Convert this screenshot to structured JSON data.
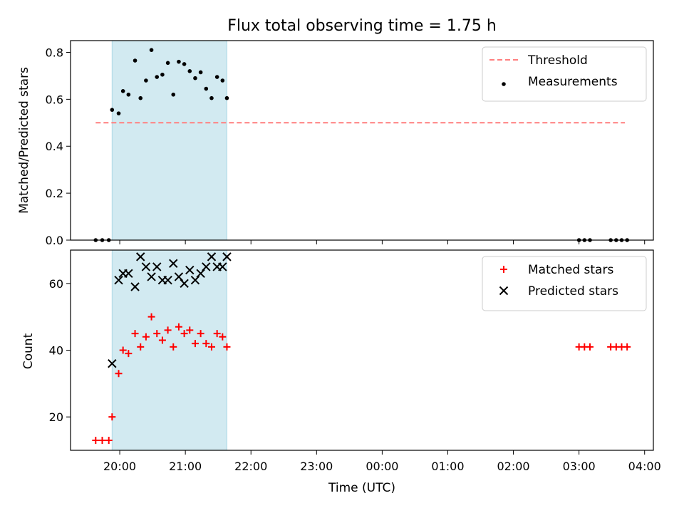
{
  "title": "Flux total observing time = 1.75 h",
  "colors": {
    "shade": "#add8e6",
    "threshold": "#ff7f7f",
    "measurements": "#000000",
    "matched": "#ff0000",
    "predicted": "#000000"
  },
  "chart_data": [
    {
      "type": "scatter",
      "panel": "top",
      "ylabel": "Matched/Predicted stars",
      "xlim": [
        "19:15",
        "04:08"
      ],
      "ylim": [
        0,
        0.85
      ],
      "yticks": [
        0.0,
        0.2,
        0.4,
        0.6,
        0.8
      ],
      "ytick_labels": [
        "0.0",
        "0.2",
        "0.4",
        "0.6",
        "0.8"
      ],
      "shaded_span": [
        "19:53",
        "21:38"
      ],
      "legend_position": "upper right",
      "threshold": {
        "name": "Threshold",
        "y": 0.5,
        "x": [
          "19:38",
          "03:42"
        ],
        "style": "dashed"
      },
      "series": [
        {
          "name": "Measurements",
          "marker": "dot",
          "points": [
            [
              "19:38",
              0.0
            ],
            [
              "19:44",
              0.0
            ],
            [
              "19:50",
              0.0
            ],
            [
              "19:53",
              0.555
            ],
            [
              "19:59",
              0.54
            ],
            [
              "20:03",
              0.635
            ],
            [
              "20:08",
              0.62
            ],
            [
              "20:14",
              0.765
            ],
            [
              "20:19",
              0.605
            ],
            [
              "20:24",
              0.68
            ],
            [
              "20:29",
              0.81
            ],
            [
              "20:34",
              0.695
            ],
            [
              "20:39",
              0.705
            ],
            [
              "20:44",
              0.755
            ],
            [
              "20:49",
              0.62
            ],
            [
              "20:54",
              0.76
            ],
            [
              "20:59",
              0.75
            ],
            [
              "21:04",
              0.72
            ],
            [
              "21:09",
              0.69
            ],
            [
              "21:14",
              0.715
            ],
            [
              "21:19",
              0.645
            ],
            [
              "21:24",
              0.605
            ],
            [
              "21:29",
              0.695
            ],
            [
              "21:34",
              0.68
            ],
            [
              "21:38",
              0.605
            ],
            [
              "03:00",
              0.0
            ],
            [
              "03:05",
              0.0
            ],
            [
              "03:10",
              0.0
            ],
            [
              "03:29",
              0.0
            ],
            [
              "03:34",
              0.0
            ],
            [
              "03:39",
              0.0
            ],
            [
              "03:44",
              0.0
            ]
          ]
        }
      ]
    },
    {
      "type": "scatter",
      "panel": "bottom",
      "xlabel": "Time (UTC)",
      "ylabel": "Count",
      "xlim": [
        "19:15",
        "04:08"
      ],
      "xticks": [
        "20:00",
        "21:00",
        "22:00",
        "23:00",
        "00:00",
        "01:00",
        "02:00",
        "03:00",
        "04:00"
      ],
      "ylim": [
        10,
        70
      ],
      "yticks": [
        20,
        40,
        60
      ],
      "ytick_labels": [
        "20",
        "40",
        "60"
      ],
      "shaded_span": [
        "19:53",
        "21:38"
      ],
      "legend_position": "upper right",
      "series": [
        {
          "name": "Matched stars",
          "marker": "plus",
          "points": [
            [
              "19:38",
              13
            ],
            [
              "19:44",
              13
            ],
            [
              "19:50",
              13
            ],
            [
              "19:53",
              20
            ],
            [
              "19:59",
              33
            ],
            [
              "20:03",
              40
            ],
            [
              "20:08",
              39
            ],
            [
              "20:14",
              45
            ],
            [
              "20:19",
              41
            ],
            [
              "20:24",
              44
            ],
            [
              "20:29",
              50
            ],
            [
              "20:34",
              45
            ],
            [
              "20:39",
              43
            ],
            [
              "20:44",
              46
            ],
            [
              "20:49",
              41
            ],
            [
              "20:54",
              47
            ],
            [
              "20:59",
              45
            ],
            [
              "21:04",
              46
            ],
            [
              "21:09",
              42
            ],
            [
              "21:14",
              45
            ],
            [
              "21:19",
              42
            ],
            [
              "21:24",
              41
            ],
            [
              "21:29",
              45
            ],
            [
              "21:34",
              44
            ],
            [
              "21:38",
              41
            ],
            [
              "03:00",
              41
            ],
            [
              "03:05",
              41
            ],
            [
              "03:10",
              41
            ],
            [
              "03:29",
              41
            ],
            [
              "03:34",
              41
            ],
            [
              "03:39",
              41
            ],
            [
              "03:44",
              41
            ]
          ]
        },
        {
          "name": "Predicted stars",
          "marker": "x",
          "points": [
            [
              "19:53",
              36
            ],
            [
              "19:59",
              61
            ],
            [
              "20:03",
              63
            ],
            [
              "20:08",
              63
            ],
            [
              "20:14",
              59
            ],
            [
              "20:19",
              68
            ],
            [
              "20:24",
              65
            ],
            [
              "20:29",
              62
            ],
            [
              "20:34",
              65
            ],
            [
              "20:39",
              61
            ],
            [
              "20:44",
              61
            ],
            [
              "20:49",
              66
            ],
            [
              "20:54",
              62
            ],
            [
              "20:59",
              60
            ],
            [
              "21:04",
              64
            ],
            [
              "21:09",
              61
            ],
            [
              "21:14",
              63
            ],
            [
              "21:19",
              65
            ],
            [
              "21:24",
              68
            ],
            [
              "21:29",
              65
            ],
            [
              "21:34",
              65
            ],
            [
              "21:38",
              68
            ]
          ]
        }
      ]
    }
  ]
}
